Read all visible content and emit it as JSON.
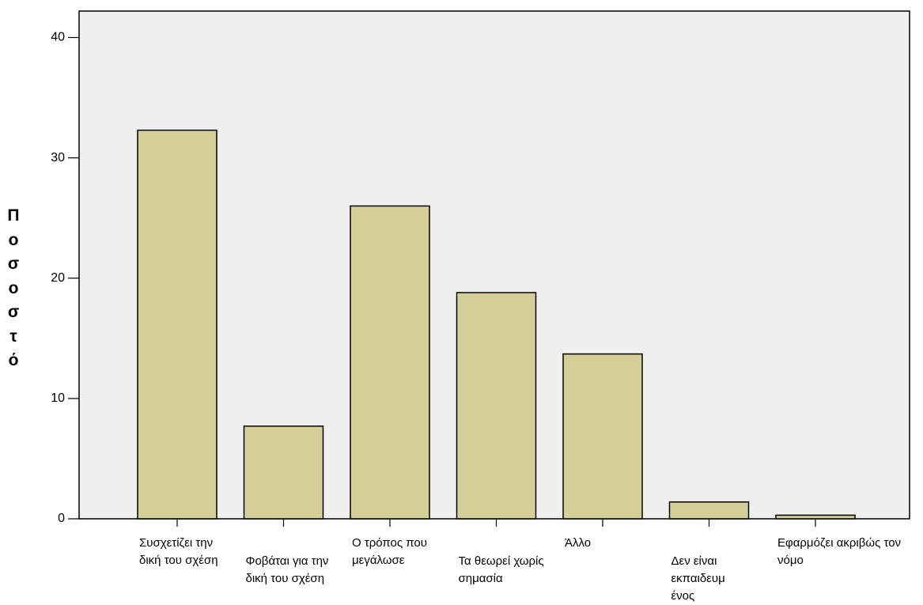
{
  "chart_data": {
    "type": "bar",
    "y_label": "Ποσοστό",
    "categories": [
      "Συσχετίζει την\nδική του σχέση",
      "Φοβάται για την\nδική του σχέση",
      "Ο τρόπος που\nμεγάλωσε",
      "Τα θεωρεί χωρίς\nσημασία",
      "Άλλο",
      "Δεν είναι\nεκπαιδευμ\nένος",
      "Εφαρμόζει ακριβώς τον\nνόμο"
    ],
    "values": [
      32.3,
      7.7,
      26.0,
      18.8,
      13.7,
      1.4,
      0.3
    ],
    "color": "#d4cf98",
    "ylim": [
      0,
      42.2
    ],
    "yticks": [
      0,
      10,
      20,
      30,
      40
    ]
  }
}
